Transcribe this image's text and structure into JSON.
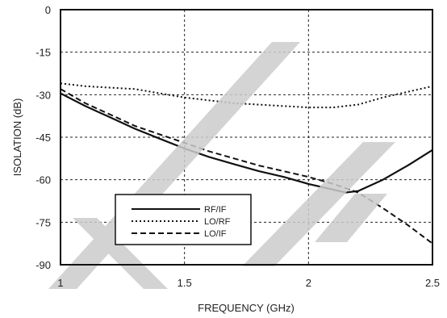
{
  "chart_data": {
    "type": "line",
    "title": "",
    "xlabel": "FREQUENCY (GHz)",
    "ylabel": "ISOLATION (dB)",
    "xlim": [
      1,
      2.5
    ],
    "ylim": [
      -90,
      0
    ],
    "x_ticks": [
      1,
      1.5,
      2,
      2.5
    ],
    "x_tick_labels": [
      "1",
      "1.5",
      "2",
      "2.5"
    ],
    "y_ticks": [
      0,
      -15,
      -30,
      -45,
      -60,
      -75,
      -90
    ],
    "y_tick_labels": [
      "0",
      "-15",
      "-30",
      "-45",
      "-60",
      "-75",
      "-90"
    ],
    "grid": true,
    "legend_position": "bottom-left",
    "series": [
      {
        "name": "RF/IF",
        "style": "solid",
        "x": [
          1.0,
          1.1,
          1.2,
          1.3,
          1.4,
          1.5,
          1.6,
          1.7,
          1.8,
          1.9,
          2.0,
          2.1,
          2.15,
          2.2,
          2.3,
          2.4,
          2.5
        ],
        "y": [
          -29.5,
          -34,
          -38,
          -42,
          -45.5,
          -49,
          -52,
          -54.5,
          -57,
          -59,
          -61.5,
          -63.5,
          -64.5,
          -64,
          -60,
          -55,
          -49.5
        ]
      },
      {
        "name": "LO/RF",
        "style": "dotted",
        "x": [
          1.0,
          1.1,
          1.2,
          1.3,
          1.4,
          1.5,
          1.6,
          1.7,
          1.8,
          1.9,
          2.0,
          2.1,
          2.2,
          2.3,
          2.4,
          2.5
        ],
        "y": [
          -26,
          -27,
          -27.5,
          -28,
          -29.5,
          -31,
          -32,
          -33,
          -33.5,
          -34,
          -34.5,
          -34.5,
          -33.5,
          -31,
          -29,
          -27
        ]
      },
      {
        "name": "LO/IF",
        "style": "dashed",
        "x": [
          1.0,
          1.1,
          1.2,
          1.3,
          1.4,
          1.5,
          1.6,
          1.7,
          1.8,
          1.9,
          2.0,
          2.1,
          2.2,
          2.3,
          2.4,
          2.5
        ],
        "y": [
          -28,
          -33,
          -37,
          -41,
          -44,
          -47,
          -50,
          -52.5,
          -55,
          -57,
          -59,
          -61.5,
          -64.5,
          -70,
          -76,
          -82.5
        ]
      }
    ]
  },
  "colors": {
    "line": "#111111",
    "grid": "#222222",
    "watermark": "#cccccc"
  }
}
